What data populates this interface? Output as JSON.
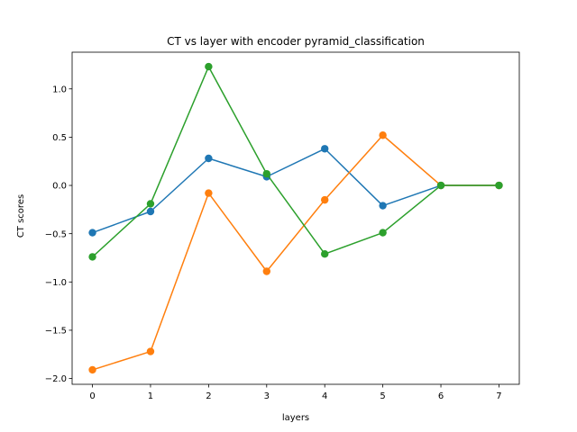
{
  "chart_data": {
    "type": "line",
    "title": "CT vs layer with encoder pyramid_classification",
    "xlabel": "layers",
    "ylabel": "CT scores",
    "x": [
      0,
      1,
      2,
      3,
      4,
      5,
      6,
      7
    ],
    "xticks": [
      0,
      1,
      2,
      3,
      4,
      5,
      6,
      7
    ],
    "xtick_labels": [
      "0",
      "1",
      "2",
      "3",
      "4",
      "5",
      "6",
      "7"
    ],
    "yticks": [
      -2.0,
      -1.5,
      -1.0,
      -0.5,
      0.0,
      0.5,
      1.0
    ],
    "ytick_labels": [
      "−2.0",
      "−1.5",
      "−1.0",
      "−0.5",
      "0.0",
      "0.5",
      "1.0"
    ],
    "xlim": [
      -0.35,
      7.35
    ],
    "ylim": [
      -2.06,
      1.38
    ],
    "grid": false,
    "series": [
      {
        "color": "#1f77b4",
        "values": [
          -0.49,
          -0.27,
          0.28,
          0.09,
          0.38,
          -0.21,
          0.0,
          0.0
        ]
      },
      {
        "color": "#ff7f0e",
        "values": [
          -1.91,
          -1.72,
          -0.08,
          -0.89,
          -0.15,
          0.52,
          0.0,
          0.0
        ]
      },
      {
        "color": "#2ca02c",
        "values": [
          -0.74,
          -0.19,
          1.23,
          0.12,
          -0.71,
          -0.49,
          0.0,
          0.0
        ]
      }
    ]
  }
}
